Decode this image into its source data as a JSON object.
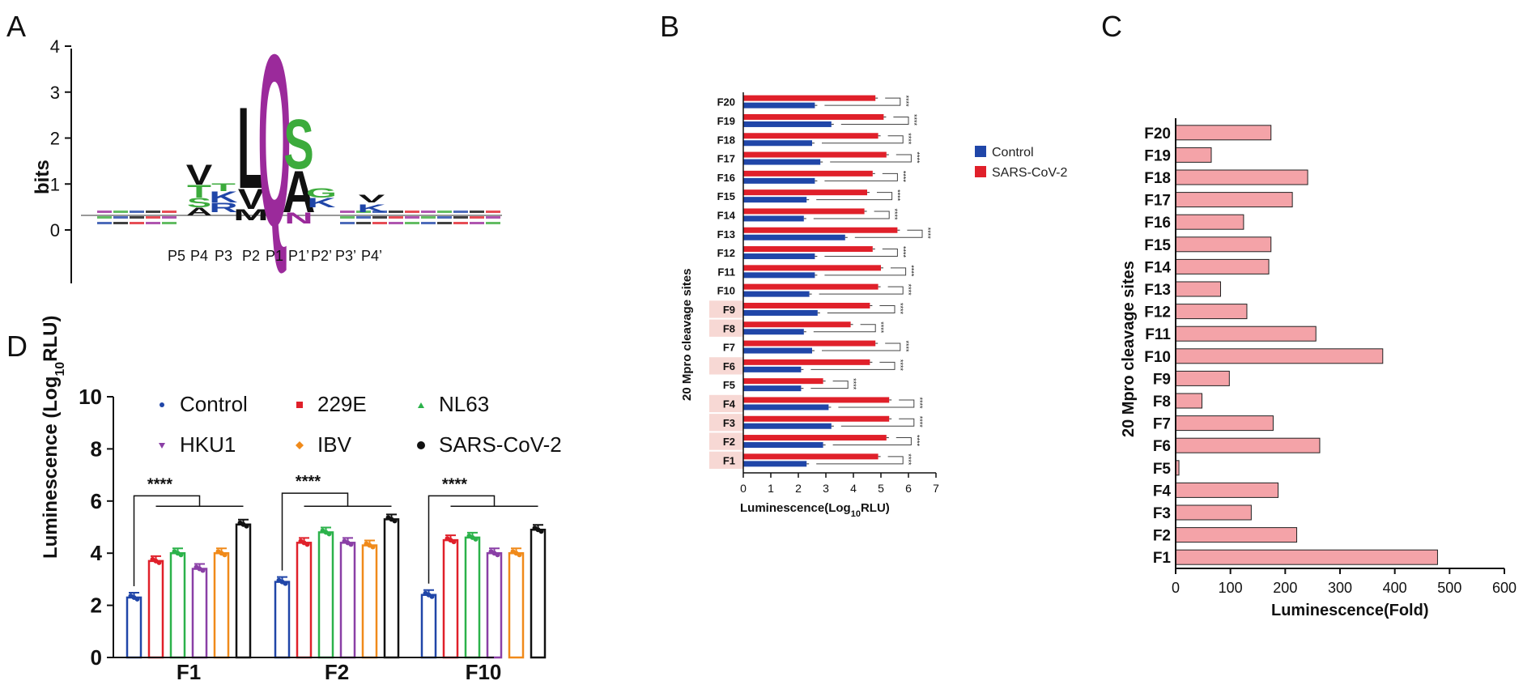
{
  "colors": {
    "control": "#2046a8",
    "sars": "#e0202a",
    "e229": "#e0202a",
    "nl63": "#2bb24a",
    "hku1": "#8a3fa6",
    "ibv": "#f08a1a",
    "black": "#111111",
    "fold_bar": "#f4a3a8",
    "highlight": "#f7d8d4",
    "logo_p1": "#9b2a9b",
    "logo_green": "#3cab3c"
  },
  "chart_data": [
    {
      "panel": "A",
      "type": "sequence-logo",
      "ylabel": "bits",
      "ylim": [
        0,
        4
      ],
      "yticks": [
        "0",
        "1",
        "2",
        "3",
        "4"
      ],
      "positions": [
        "P5",
        "P4",
        "P3",
        "P2",
        "P1",
        "P1’",
        "P2’",
        "P3’",
        "P4’"
      ],
      "letters": [
        {
          "pos": "P4",
          "letter": "V",
          "color": "black"
        },
        {
          "pos": "P4",
          "letter": "T",
          "color": "green"
        },
        {
          "pos": "P4",
          "letter": "S",
          "color": "green"
        },
        {
          "pos": "P4",
          "letter": "A",
          "color": "black"
        },
        {
          "pos": "P3",
          "letter": "T",
          "color": "green"
        },
        {
          "pos": "P3",
          "letter": "K",
          "color": "blue"
        },
        {
          "pos": "P3",
          "letter": "R",
          "color": "blue"
        },
        {
          "pos": "P2",
          "letter": "L",
          "color": "black"
        },
        {
          "pos": "P2",
          "letter": "V",
          "color": "black"
        },
        {
          "pos": "P2",
          "letter": "M",
          "color": "black"
        },
        {
          "pos": "P1",
          "letter": "Q",
          "color": "purple"
        },
        {
          "pos": "P1’",
          "letter": "S",
          "color": "green"
        },
        {
          "pos": "P1’",
          "letter": "A",
          "color": "black"
        },
        {
          "pos": "P1’",
          "letter": "N",
          "color": "purple"
        },
        {
          "pos": "P2’",
          "letter": "G",
          "color": "green"
        },
        {
          "pos": "P2’",
          "letter": "K",
          "color": "blue"
        },
        {
          "pos": "P4’",
          "letter": "V",
          "color": "black"
        },
        {
          "pos": "P4’",
          "letter": "K",
          "color": "blue"
        }
      ]
    },
    {
      "panel": "B",
      "type": "bar",
      "orientation": "horizontal",
      "xlabel": "Luminescence(Log",
      "xlabel_sub": "10",
      "xlabel_tail": "RLU)",
      "ylabel": "20 Mpro cleavage sites",
      "xlim": [
        0,
        7
      ],
      "xticks": [
        "0",
        "1",
        "2",
        "3",
        "4",
        "5",
        "6",
        "7"
      ],
      "categories": [
        "F20",
        "F19",
        "F18",
        "F17",
        "F16",
        "F15",
        "F14",
        "F13",
        "F12",
        "F11",
        "F10",
        "F9",
        "F8",
        "F7",
        "F6",
        "F5",
        "F4",
        "F3",
        "F2",
        "F1"
      ],
      "highlighted": [
        "F9",
        "F8",
        "F6",
        "F4",
        "F3",
        "F2",
        "F1"
      ],
      "series": [
        {
          "name": "Control",
          "values": [
            2.6,
            3.2,
            2.5,
            2.8,
            2.6,
            2.3,
            2.2,
            3.7,
            2.6,
            2.6,
            2.4,
            2.7,
            2.2,
            2.5,
            2.1,
            2.1,
            3.1,
            3.2,
            2.9,
            2.3
          ]
        },
        {
          "name": "SARS-CoV-2",
          "values": [
            4.8,
            5.1,
            4.9,
            5.2,
            4.7,
            4.5,
            4.4,
            5.6,
            4.7,
            5.0,
            4.9,
            4.6,
            3.9,
            4.8,
            4.6,
            2.9,
            5.3,
            5.3,
            5.2,
            4.9
          ]
        }
      ],
      "significance": "****",
      "legend_position": "top-right"
    },
    {
      "panel": "C",
      "type": "bar",
      "orientation": "horizontal",
      "xlabel": "Luminescence(Fold)",
      "ylabel": "20 Mpro cleavage sites",
      "xlim": [
        0,
        600
      ],
      "xticks": [
        "0",
        "100",
        "200",
        "300",
        "400",
        "500",
        "600"
      ],
      "categories": [
        "F20",
        "F19",
        "F18",
        "F17",
        "F16",
        "F15",
        "F14",
        "F13",
        "F12",
        "F11",
        "F10",
        "F9",
        "F8",
        "F7",
        "F6",
        "F5",
        "F4",
        "F3",
        "F2",
        "F1"
      ],
      "values": [
        174,
        65,
        241,
        213,
        124,
        174,
        170,
        82,
        130,
        256,
        378,
        98,
        48,
        178,
        263,
        6,
        187,
        138,
        221,
        478
      ]
    },
    {
      "panel": "D",
      "type": "bar",
      "ylabel": "Luminescence (Log",
      "ylabel_sub": "10",
      "ylabel_tail": "RLU)",
      "ylim": [
        0,
        10
      ],
      "yticks": [
        "0",
        "2",
        "4",
        "6",
        "8",
        "10"
      ],
      "categories": [
        "F1",
        "F2",
        "F10"
      ],
      "series": [
        {
          "name": "Control",
          "values": [
            2.3,
            2.9,
            2.4
          ]
        },
        {
          "name": "229E",
          "values": [
            3.7,
            4.4,
            4.5
          ]
        },
        {
          "name": "NL63",
          "values": [
            4.0,
            4.8,
            4.6
          ]
        },
        {
          "name": "HKU1",
          "values": [
            3.4,
            4.4,
            4.0
          ]
        },
        {
          "name": "IBV",
          "values": [
            4.0,
            4.3,
            4.0
          ]
        },
        {
          "name": "SARS-CoV-2",
          "values": [
            5.1,
            5.3,
            4.9
          ]
        }
      ],
      "significance": "****",
      "legend_position": "top"
    }
  ],
  "panel_labels": {
    "a": "A",
    "b": "B",
    "c": "C",
    "d": "D"
  }
}
